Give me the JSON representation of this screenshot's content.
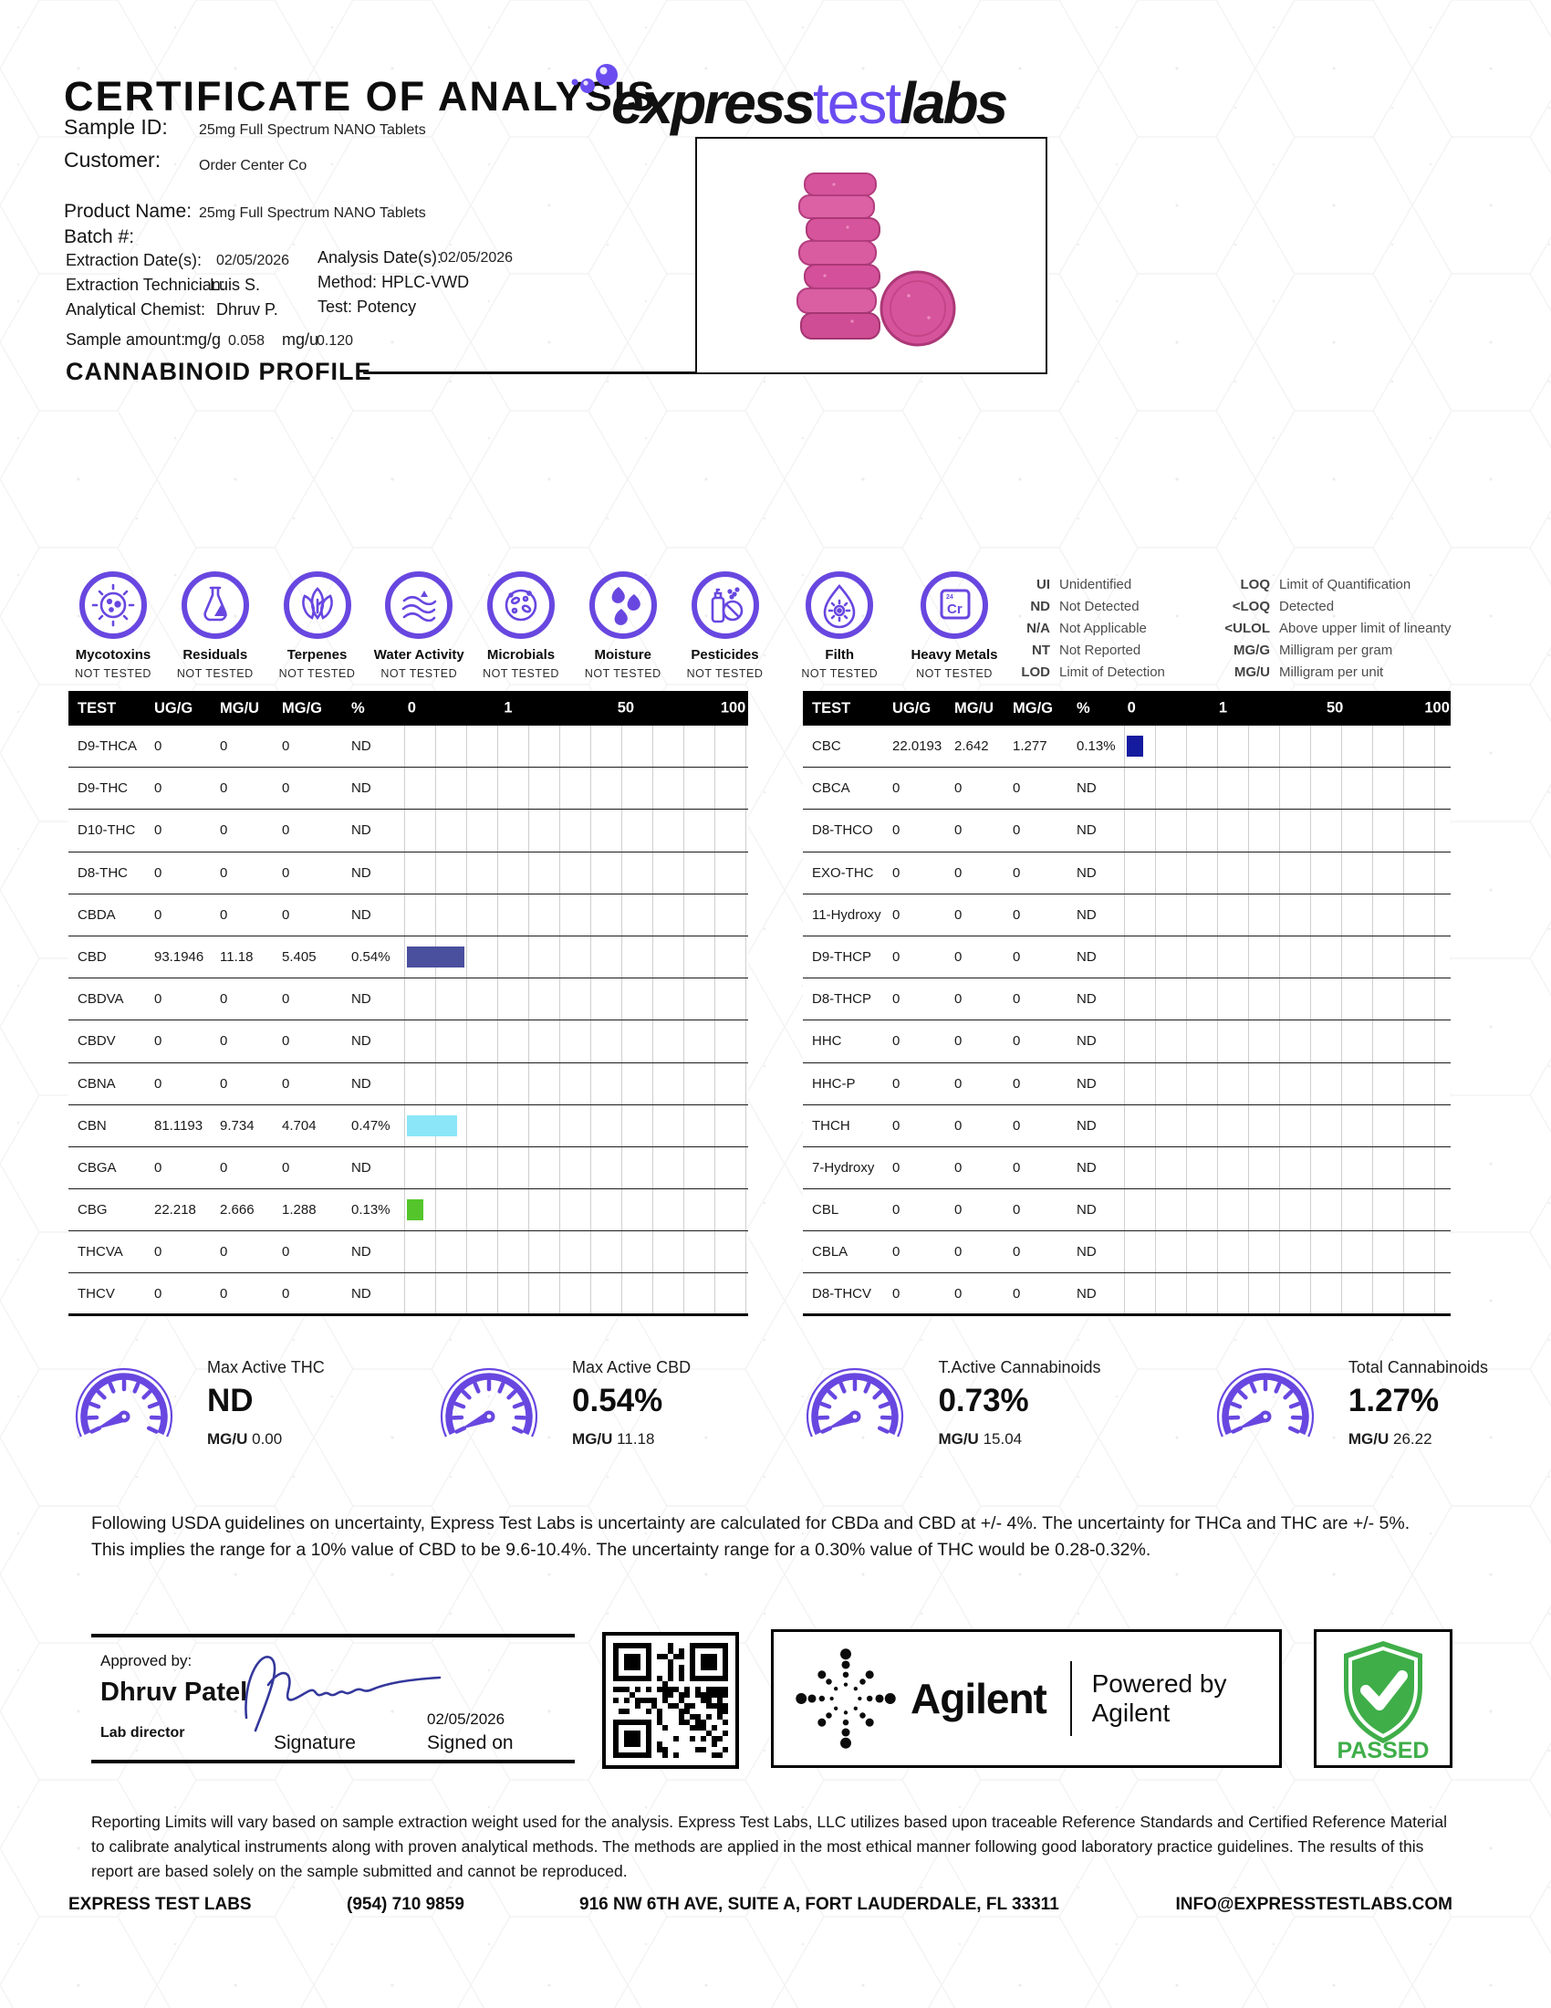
{
  "header": {
    "title": "CERTIFICATE OF ANALYSIS",
    "logo_express": "express",
    "logo_test": "test",
    "logo_labs": "labs"
  },
  "sample_info": {
    "sample_id_label": "Sample ID:",
    "sample_id": "25mg Full Spectrum NANO Tablets",
    "customer_label": "Customer:",
    "customer": "Order Center Co",
    "product_name_label": "Product Name:",
    "product_name": "25mg Full Spectrum NANO Tablets",
    "batch_label": "Batch #:",
    "extraction_date_label": "Extraction Date(s):",
    "extraction_date": "02/05/2026",
    "analysis_date_label": "Analysis Date(s):",
    "analysis_date": "02/05/2026",
    "extraction_technician_label": "Extraction Technician:",
    "extraction_technician": "Luis S.",
    "method_label": "Method:",
    "method": "HPLC-VWD",
    "analytical_chemist_label": "Analytical Chemist:",
    "analytical_chemist": "Dhruv P.",
    "test_label": "Test:",
    "test": "Potency",
    "sample_amount_label": "Sample amount:",
    "mgg_label": "mg/g",
    "mgg_value": "0.058",
    "mgu_label": "mg/u",
    "mgu_value": "0.120"
  },
  "section_title": "CANNABINOID PROFILE",
  "test_icons": [
    {
      "icon": "mycotoxins-icon",
      "label": "Mycotoxins",
      "status": "NOT TESTED"
    },
    {
      "icon": "residuals-icon",
      "label": "Residuals",
      "status": "NOT TESTED"
    },
    {
      "icon": "terpenes-icon",
      "label": "Terpenes",
      "status": "NOT TESTED"
    },
    {
      "icon": "water-activity-icon",
      "label": "Water Activity",
      "status": "NOT TESTED"
    },
    {
      "icon": "microbials-icon",
      "label": "Microbials",
      "status": "NOT TESTED"
    },
    {
      "icon": "moisture-icon",
      "label": "Moisture",
      "status": "NOT TESTED"
    },
    {
      "icon": "pesticides-icon",
      "label": "Pesticides",
      "status": "NOT TESTED"
    },
    {
      "icon": "filth-icon",
      "label": "Filth",
      "status": "NOT TESTED"
    },
    {
      "icon": "heavy-metals-icon",
      "label": "Heavy Metals",
      "status": "NOT TESTED",
      "element_symbol": "Cr",
      "element_number": "24"
    }
  ],
  "legend": {
    "col1": [
      {
        "abbr": "UI",
        "desc": "Unidentified"
      },
      {
        "abbr": "ND",
        "desc": "Not Detected"
      },
      {
        "abbr": "N/A",
        "desc": "Not Applicable"
      },
      {
        "abbr": "NT",
        "desc": "Not Reported"
      },
      {
        "abbr": "LOD",
        "desc": "Limit of Detection"
      }
    ],
    "col2": [
      {
        "abbr": "LOQ",
        "desc": "Limit of Quantification"
      },
      {
        "abbr": "<LOQ",
        "desc": "Detected"
      },
      {
        "abbr": "<ULOL",
        "desc": "Above upper limit of lineanty"
      },
      {
        "abbr": "MG/G",
        "desc": "Milligram per gram"
      },
      {
        "abbr": "MG/U",
        "desc": "Milligram per unit"
      }
    ]
  },
  "tables": {
    "columns": {
      "test": "TEST",
      "ugg": "UG/G",
      "mgu": "MG/U",
      "mgg": "MG/G",
      "pct": "%"
    },
    "scale": [
      "0",
      "1",
      "50",
      "100"
    ],
    "left_rows": [
      {
        "test": "D9-THCA",
        "ugg": "0",
        "mgu": "0",
        "mgg": "0",
        "pct": "ND"
      },
      {
        "test": "D9-THC",
        "ugg": "0",
        "mgu": "0",
        "mgg": "0",
        "pct": "ND"
      },
      {
        "test": "D10-THC",
        "ugg": "0",
        "mgu": "0",
        "mgg": "0",
        "pct": "ND"
      },
      {
        "test": "D8-THC",
        "ugg": "0",
        "mgu": "0",
        "mgg": "0",
        "pct": "ND"
      },
      {
        "test": "CBDA",
        "ugg": "0",
        "mgu": "0",
        "mgg": "0",
        "pct": "ND"
      },
      {
        "test": "CBD",
        "ugg": "93.1946",
        "mgu": "11.18",
        "mgg": "5.405",
        "pct": "0.54%",
        "bar": 0.54,
        "bar_color": "#4a4f9e"
      },
      {
        "test": "CBDVA",
        "ugg": "0",
        "mgu": "0",
        "mgg": "0",
        "pct": "ND"
      },
      {
        "test": "CBDV",
        "ugg": "0",
        "mgu": "0",
        "mgg": "0",
        "pct": "ND"
      },
      {
        "test": "CBNA",
        "ugg": "0",
        "mgu": "0",
        "mgg": "0",
        "pct": "ND"
      },
      {
        "test": "CBN",
        "ugg": "81.1193",
        "mgu": "9.734",
        "mgg": "4.704",
        "pct": "0.47%",
        "bar": 0.47,
        "bar_color": "#8be6f7"
      },
      {
        "test": "CBGA",
        "ugg": "0",
        "mgu": "0",
        "mgg": "0",
        "pct": "ND"
      },
      {
        "test": "CBG",
        "ugg": "22.218",
        "mgu": "2.666",
        "mgg": "1.288",
        "pct": "0.13%",
        "bar": 0.13,
        "bar_color": "#54c62c"
      },
      {
        "test": "THCVA",
        "ugg": "0",
        "mgu": "0",
        "mgg": "0",
        "pct": "ND"
      },
      {
        "test": "THCV",
        "ugg": "0",
        "mgu": "0",
        "mgg": "0",
        "pct": "ND"
      }
    ],
    "right_rows": [
      {
        "test": "CBC",
        "ugg": "22.0193",
        "mgu": "2.642",
        "mgg": "1.277",
        "pct": "0.13%",
        "bar": 0.13,
        "bar_color": "#151b9e"
      },
      {
        "test": "CBCA",
        "ugg": "0",
        "mgu": "0",
        "mgg": "0",
        "pct": "ND"
      },
      {
        "test": "D8-THCO",
        "ugg": "0",
        "mgu": "0",
        "mgg": "0",
        "pct": "ND"
      },
      {
        "test": "EXO-THC",
        "ugg": "0",
        "mgu": "0",
        "mgg": "0",
        "pct": "ND"
      },
      {
        "test": "11-Hydroxy",
        "ugg": "0",
        "mgu": "0",
        "mgg": "0",
        "pct": "ND"
      },
      {
        "test": "D9-THCP",
        "ugg": "0",
        "mgu": "0",
        "mgg": "0",
        "pct": "ND"
      },
      {
        "test": "D8-THCP",
        "ugg": "0",
        "mgu": "0",
        "mgg": "0",
        "pct": "ND"
      },
      {
        "test": "HHC",
        "ugg": "0",
        "mgu": "0",
        "mgg": "0",
        "pct": "ND"
      },
      {
        "test": "HHC-P",
        "ugg": "0",
        "mgu": "0",
        "mgg": "0",
        "pct": "ND"
      },
      {
        "test": "THCH",
        "ugg": "0",
        "mgu": "0",
        "mgg": "0",
        "pct": "ND"
      },
      {
        "test": "7-Hydroxy",
        "ugg": "0",
        "mgu": "0",
        "mgg": "0",
        "pct": "ND"
      },
      {
        "test": "CBL",
        "ugg": "0",
        "mgu": "0",
        "mgg": "0",
        "pct": "ND"
      },
      {
        "test": "CBLA",
        "ugg": "0",
        "mgu": "0",
        "mgg": "0",
        "pct": "ND"
      },
      {
        "test": "D8-THCV",
        "ugg": "0",
        "mgu": "0",
        "mgg": "0",
        "pct": "ND"
      }
    ]
  },
  "gauges": [
    {
      "title": "Max Active THC",
      "value": "ND",
      "unit": "MG/U",
      "unit_value": "0.00"
    },
    {
      "title": "Max Active CBD",
      "value": "0.54%",
      "unit": "MG/U",
      "unit_value": "11.18"
    },
    {
      "title": "T.Active Cannabinoids",
      "value": "0.73%",
      "unit": "MG/U",
      "unit_value": "15.04"
    },
    {
      "title": "Total Cannabinoids",
      "value": "1.27%",
      "unit": "MG/U",
      "unit_value": "26.22"
    }
  ],
  "disclaimer": "Following USDA guidelines on uncertainty, Express Test Labs is uncertainty are calculated for CBDa and CBD at +/- 4%. The uncertainty for THCa and THC are +/- 5%. This implies the range for a 10% value of CBD to be 9.6-10.4%. The uncertainty range for a 0.30% value of THC would be 0.28-0.32%.",
  "approval": {
    "approved_by_label": "Approved by:",
    "name": "Dhruv Patel",
    "role": "Lab director",
    "signature_label": "Signature",
    "signed_date": "02/05/2026",
    "signed_on_label": "Signed on"
  },
  "agilent": {
    "brand": "Agilent",
    "powered_by": "Powered by Agilent"
  },
  "passed_label": "PASSED",
  "footer": {
    "text": "Reporting Limits will vary based on sample extraction weight used for the analysis. Express Test Labs, LLC utilizes based upon traceable Reference Standards and Certified Reference Material to calibrate analytical instruments along with proven analytical methods. The methods are applied in the most ethical manner following good laboratory practice guidelines. The results of this report are based solely on the sample submitted and cannot be reproduced.",
    "company": "EXPRESS TEST LABS",
    "phone": "(954) 710 9859",
    "address": "916 NW 6TH AVE, SUITE A, FORT LAUDERDALE, FL 33311",
    "email": "INFO@EXPRESSTESTLABS.COM"
  },
  "colors": {
    "brand_purple": "#6847e0",
    "logo_purple": "#6a4cf0",
    "passed_green": "#3fae49",
    "signature_ink": "#34389b",
    "tablet_pink": "#d6549b"
  }
}
